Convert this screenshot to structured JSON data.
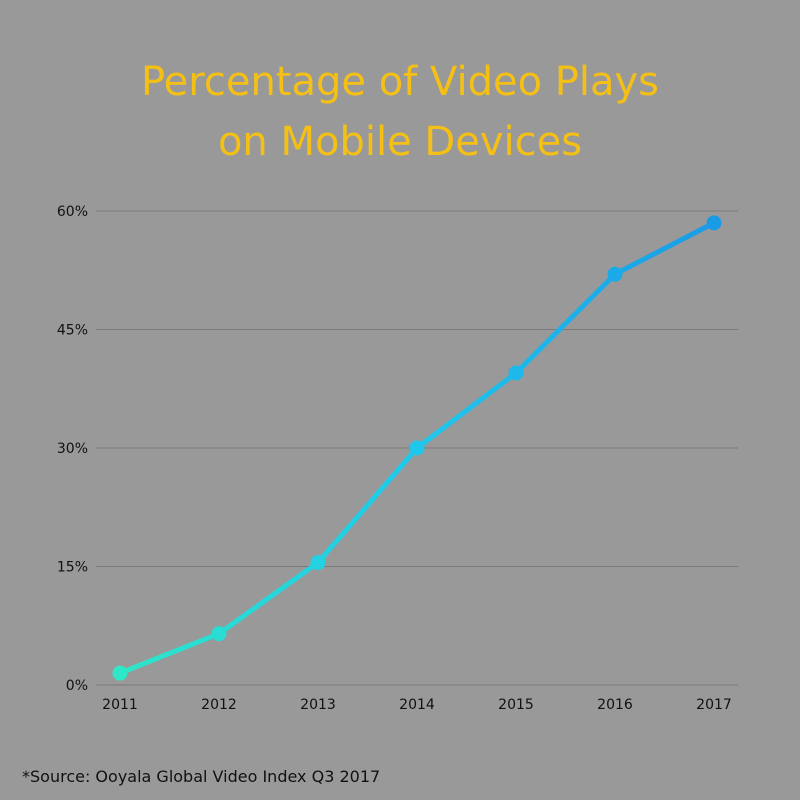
{
  "title_line1": "Percentage of Video Plays",
  "title_line2": "on Mobile Devices",
  "source": "*Source: Ooyala Global Video Index Q3 2017",
  "colors": {
    "background": "#999999",
    "title": "#f5c016",
    "line_start": "#2ee6c8",
    "line_mid": "#1ec8ec",
    "line_end": "#1a9be6",
    "grid": "#7a7a7a",
    "axis_text": "#111111"
  },
  "chart_data": {
    "type": "line",
    "title": "Percentage of Video Plays on Mobile Devices",
    "xlabel": "",
    "ylabel": "",
    "categories": [
      "2011",
      "2012",
      "2013",
      "2014",
      "2015",
      "2016",
      "2017"
    ],
    "series": [
      {
        "values": [
          1.5,
          6.5,
          15.5,
          30.0,
          39.5,
          52.0,
          58.5
        ]
      }
    ],
    "ylim": [
      0,
      60
    ],
    "yticks": [
      0,
      15,
      30,
      45,
      60
    ],
    "ytick_labels": [
      "0%",
      "15%",
      "30%",
      "45%",
      "60%"
    ],
    "grid": true,
    "legend": "none"
  }
}
